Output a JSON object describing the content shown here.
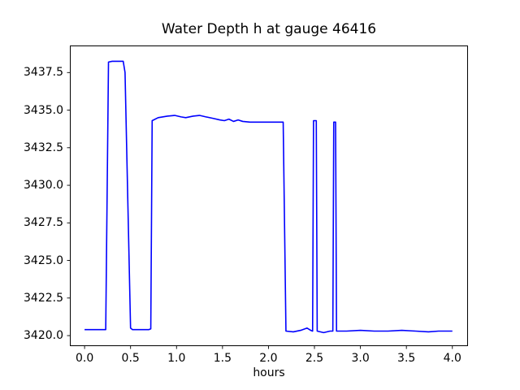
{
  "chart_data": {
    "type": "line",
    "title": "Water Depth h at gauge 46416",
    "xlabel": "hours",
    "ylabel": "",
    "grid": false,
    "legend": null,
    "background_color": "#ffffff",
    "axis_color": "#000000",
    "line_color": "#0000ff",
    "xlim": [
      -0.16,
      4.17
    ],
    "ylim": [
      3419.3,
      3439.3
    ],
    "x_ticks": [
      0.0,
      0.5,
      1.0,
      1.5,
      2.0,
      2.5,
      3.0,
      3.5,
      4.0
    ],
    "x_tick_labels": [
      "0.0",
      "0.5",
      "1.0",
      "1.5",
      "2.0",
      "2.5",
      "3.0",
      "3.5",
      "4.0"
    ],
    "y_ticks": [
      3420.0,
      3422.5,
      3425.0,
      3427.5,
      3430.0,
      3432.5,
      3435.0,
      3437.5
    ],
    "y_tick_labels": [
      "3420.0",
      "3422.5",
      "3425.0",
      "3427.5",
      "3430.0",
      "3432.5",
      "3435.0",
      "3437.5"
    ],
    "series": [
      {
        "name": "h",
        "points": [
          [
            0.0,
            3420.4
          ],
          [
            0.23,
            3420.4
          ],
          [
            0.26,
            3438.2
          ],
          [
            0.3,
            3438.25
          ],
          [
            0.42,
            3438.25
          ],
          [
            0.44,
            3437.5
          ],
          [
            0.5,
            3420.5
          ],
          [
            0.52,
            3420.4
          ],
          [
            0.7,
            3420.4
          ],
          [
            0.72,
            3420.45
          ],
          [
            0.735,
            3434.3
          ],
          [
            0.8,
            3434.5
          ],
          [
            0.9,
            3434.6
          ],
          [
            0.98,
            3434.65
          ],
          [
            1.05,
            3434.55
          ],
          [
            1.1,
            3434.5
          ],
          [
            1.18,
            3434.6
          ],
          [
            1.25,
            3434.65
          ],
          [
            1.32,
            3434.55
          ],
          [
            1.4,
            3434.45
          ],
          [
            1.47,
            3434.35
          ],
          [
            1.52,
            3434.3
          ],
          [
            1.57,
            3434.4
          ],
          [
            1.62,
            3434.25
          ],
          [
            1.67,
            3434.35
          ],
          [
            1.72,
            3434.25
          ],
          [
            1.8,
            3434.2
          ],
          [
            1.95,
            3434.2
          ],
          [
            2.1,
            3434.2
          ],
          [
            2.16,
            3434.2
          ],
          [
            2.19,
            3420.3
          ],
          [
            2.27,
            3420.25
          ],
          [
            2.35,
            3420.35
          ],
          [
            2.42,
            3420.5
          ],
          [
            2.46,
            3420.35
          ],
          [
            2.48,
            3420.3
          ],
          [
            2.49,
            3434.3
          ],
          [
            2.52,
            3434.3
          ],
          [
            2.53,
            3420.3
          ],
          [
            2.6,
            3420.2
          ],
          [
            2.67,
            3420.3
          ],
          [
            2.7,
            3420.3
          ],
          [
            2.71,
            3434.2
          ],
          [
            2.73,
            3434.2
          ],
          [
            2.74,
            3420.3
          ],
          [
            2.85,
            3420.3
          ],
          [
            3.0,
            3420.35
          ],
          [
            3.15,
            3420.3
          ],
          [
            3.3,
            3420.3
          ],
          [
            3.45,
            3420.35
          ],
          [
            3.6,
            3420.3
          ],
          [
            3.74,
            3420.25
          ],
          [
            3.85,
            3420.3
          ],
          [
            4.0,
            3420.3
          ]
        ]
      }
    ]
  }
}
